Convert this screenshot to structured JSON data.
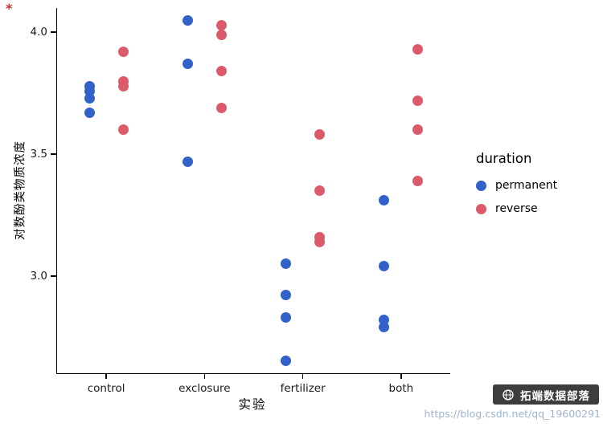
{
  "figure": {
    "corner_mark": "*"
  },
  "watermark": {
    "brand": "拓端数据部落",
    "url": "https://blog.csdn.net/qq_19600291"
  },
  "chart_data": {
    "type": "scatter",
    "title": "",
    "xlabel": "实验",
    "ylabel": "对数酚类物质浓度",
    "x_categories": [
      "control",
      "exclosure",
      "fertilizer",
      "both"
    ],
    "y_ticks": [
      4.0,
      3.5,
      3.0
    ],
    "ylim": [
      2.6,
      4.1
    ],
    "grid": false,
    "legend_title": "duration",
    "legend_position": "right",
    "series": [
      {
        "name": "permanent",
        "color": "#3262c9",
        "dodge": -21,
        "points": [
          [
            "control",
            3.78
          ],
          [
            "control",
            3.76
          ],
          [
            "control",
            3.73
          ],
          [
            "control",
            3.67
          ],
          [
            "exclosure",
            4.05
          ],
          [
            "exclosure",
            3.87
          ],
          [
            "exclosure",
            3.47
          ],
          [
            "fertilizer",
            3.05
          ],
          [
            "fertilizer",
            2.92
          ],
          [
            "fertilizer",
            2.83
          ],
          [
            "fertilizer",
            2.65
          ],
          [
            "both",
            3.31
          ],
          [
            "both",
            3.04
          ],
          [
            "both",
            2.82
          ],
          [
            "both",
            2.79
          ]
        ]
      },
      {
        "name": "reverse",
        "color": "#dd5a6b",
        "dodge": 21,
        "points": [
          [
            "control",
            3.92
          ],
          [
            "control",
            3.8
          ],
          [
            "control",
            3.78
          ],
          [
            "control",
            3.6
          ],
          [
            "exclosure",
            4.03
          ],
          [
            "exclosure",
            3.99
          ],
          [
            "exclosure",
            3.84
          ],
          [
            "exclosure",
            3.69
          ],
          [
            "fertilizer",
            3.58
          ],
          [
            "fertilizer",
            3.35
          ],
          [
            "fertilizer",
            3.16
          ],
          [
            "fertilizer",
            3.14
          ],
          [
            "both",
            3.93
          ],
          [
            "both",
            3.72
          ],
          [
            "both",
            3.6
          ],
          [
            "both",
            3.39
          ]
        ]
      }
    ]
  }
}
